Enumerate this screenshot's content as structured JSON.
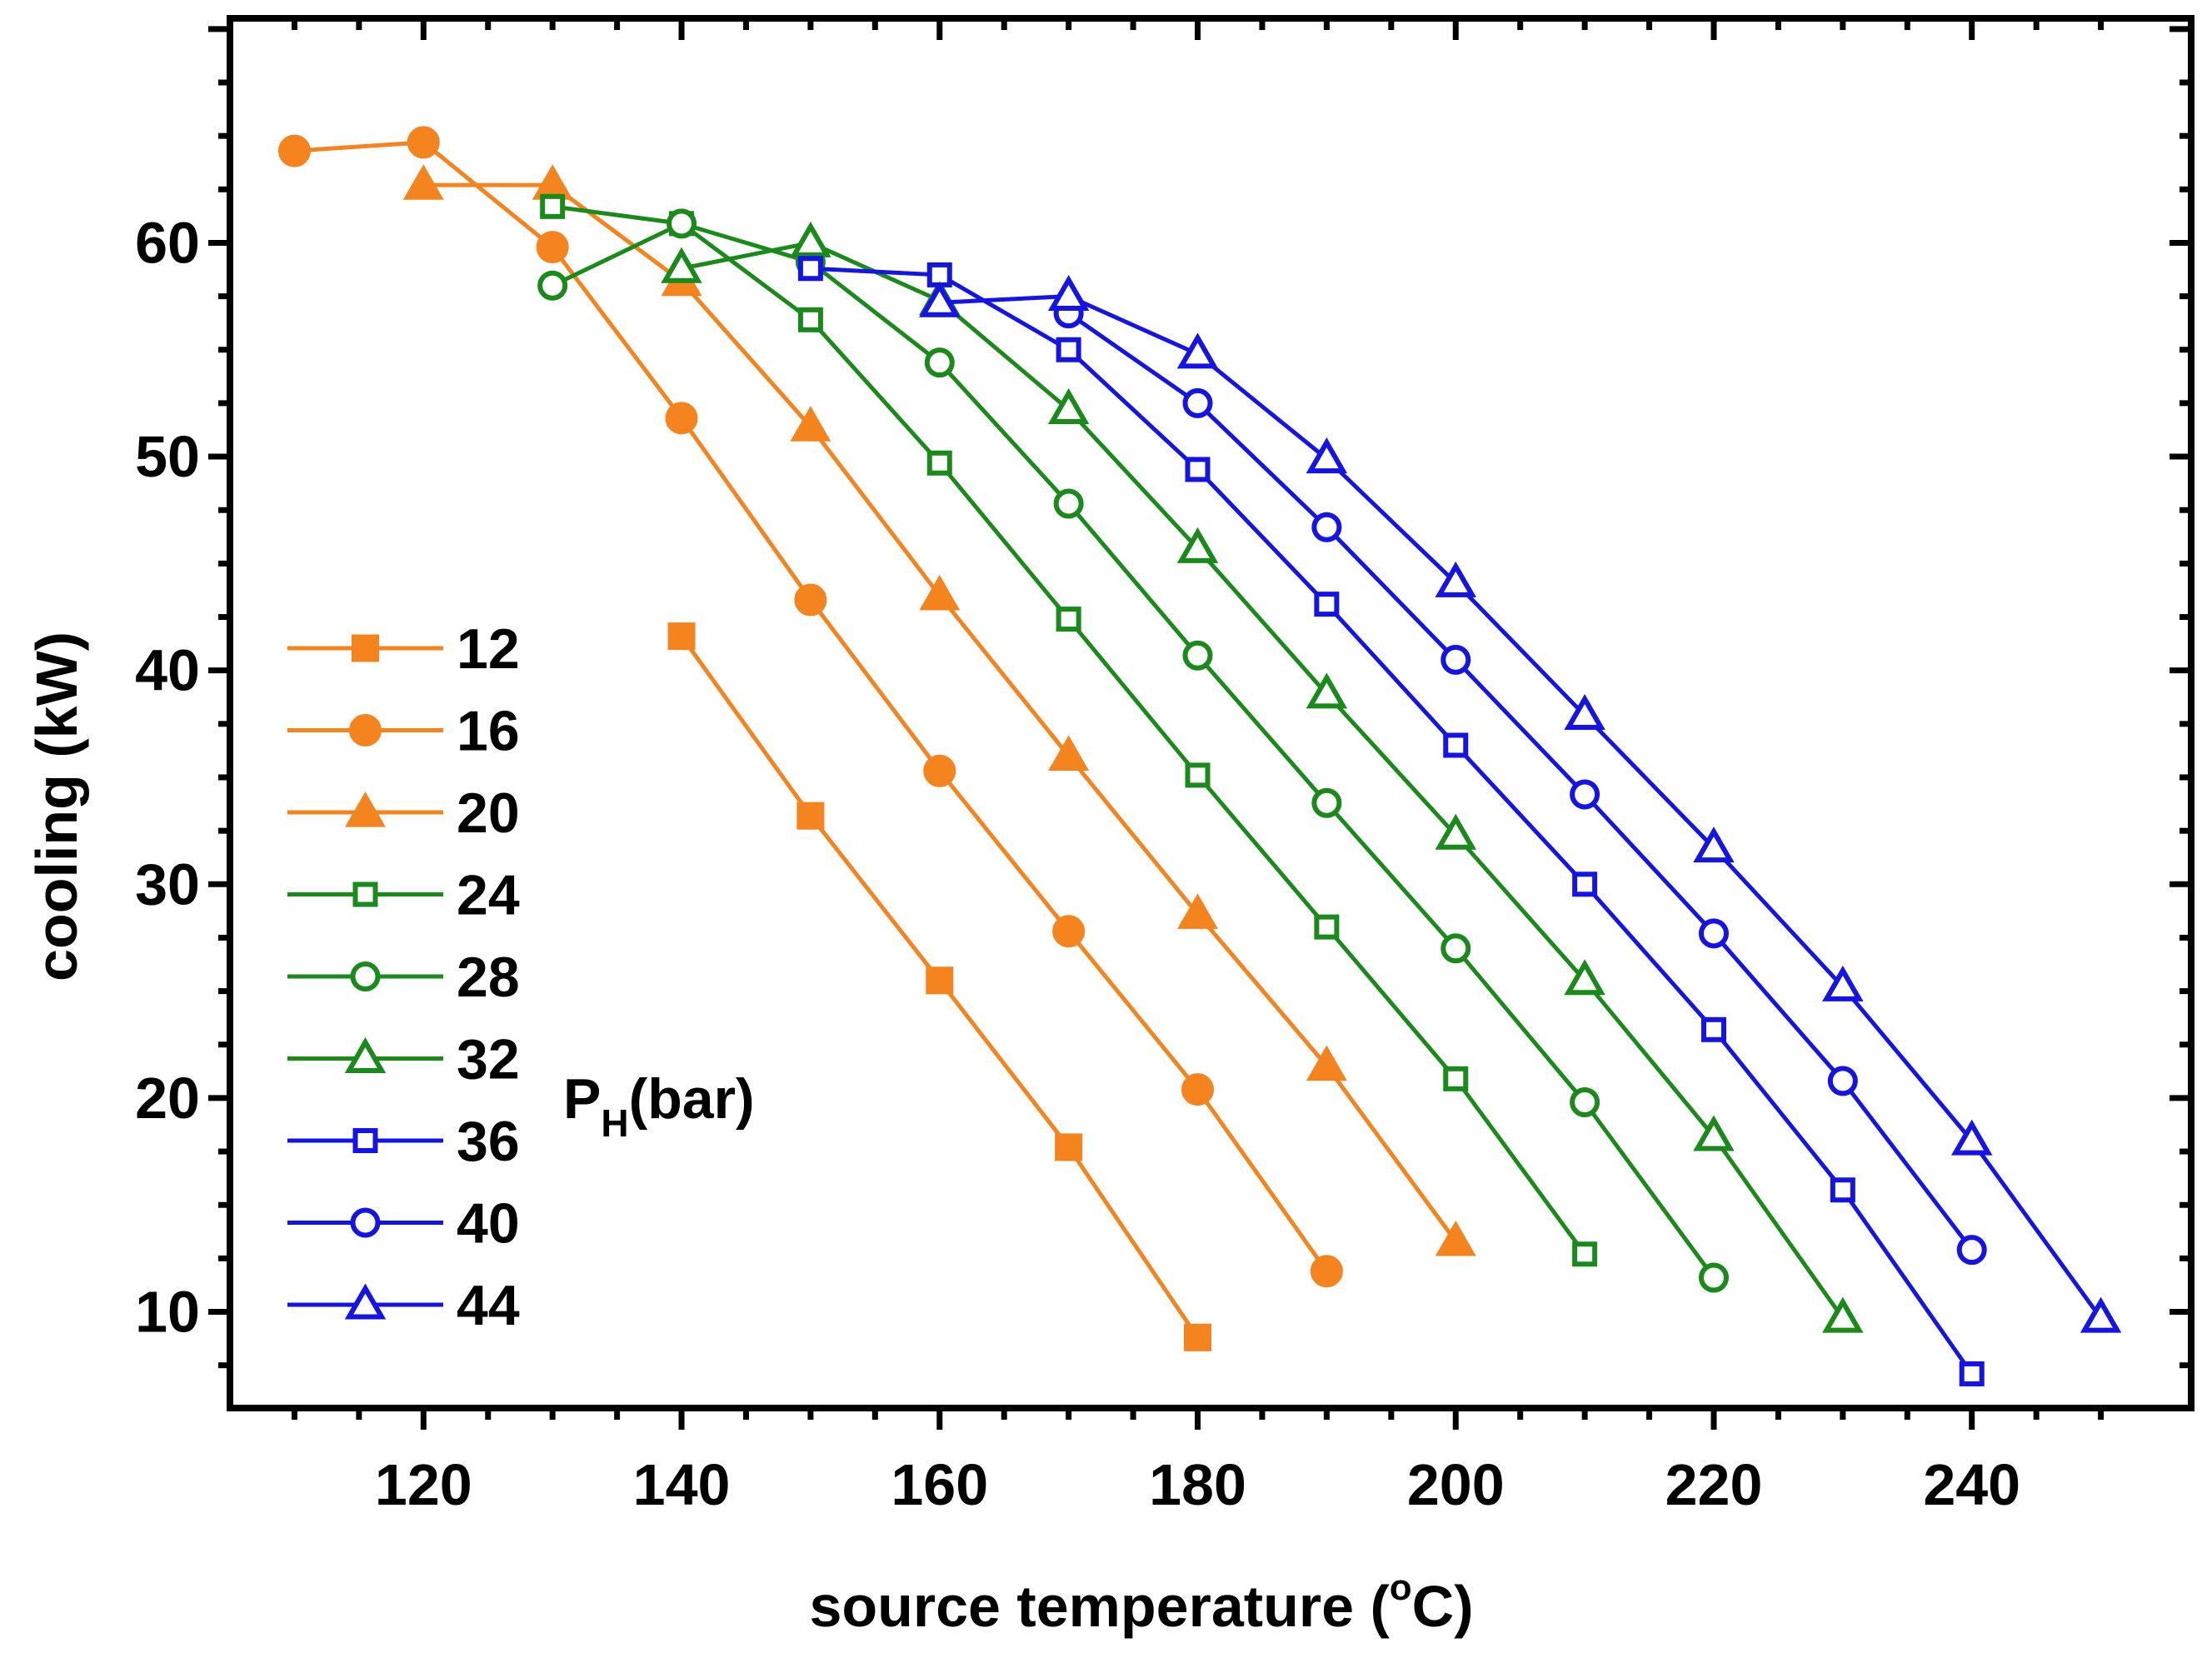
{
  "chart_data": {
    "type": "line",
    "title": "",
    "xlabel": {
      "main": "source temperature (",
      "sup": "o",
      "tail": "C)"
    },
    "ylabel": "cooling (kW)",
    "xlim": [
      105,
      257
    ],
    "ylim": [
      5.5,
      70.5
    ],
    "x_ticks": [
      120,
      140,
      160,
      180,
      200,
      220,
      240
    ],
    "y_ticks": [
      10,
      20,
      30,
      40,
      50,
      60
    ],
    "legend_title": {
      "main": "P",
      "sub": "H",
      "tail": "(bar)"
    },
    "legend_position": "left-middle",
    "colors": {
      "orange": "#f5841f",
      "green": "#1a8a1a",
      "blue": "#1414e6"
    },
    "series": [
      {
        "name": "12",
        "color": "#f5841f",
        "marker": "square",
        "filled": true,
        "x": [
          140,
          150,
          160,
          170,
          180
        ],
        "y": [
          41.6,
          33.2,
          25.5,
          17.7,
          8.8
        ]
      },
      {
        "name": "16",
        "color": "#f5841f",
        "marker": "circle",
        "filled": true,
        "x": [
          110,
          120,
          130,
          140,
          150,
          160,
          170,
          180,
          190
        ],
        "y": [
          64.3,
          64.7,
          59.8,
          51.8,
          43.3,
          35.3,
          27.8,
          20.4,
          11.9
        ]
      },
      {
        "name": "20",
        "color": "#f5841f",
        "marker": "triangle",
        "filled": true,
        "x": [
          120,
          130,
          140,
          150,
          160,
          170,
          180,
          190,
          200
        ],
        "y": [
          62.7,
          62.7,
          58.2,
          51.4,
          43.5,
          36.0,
          28.6,
          21.5,
          13.3
        ]
      },
      {
        "name": "24",
        "color": "#1a8a1a",
        "marker": "square",
        "filled": false,
        "x": [
          130,
          140,
          150,
          160,
          170,
          180,
          190,
          200,
          210
        ],
        "y": [
          61.7,
          60.9,
          56.4,
          49.7,
          42.4,
          35.1,
          28.0,
          20.9,
          12.7
        ]
      },
      {
        "name": "28",
        "color": "#1a8a1a",
        "marker": "circle",
        "filled": false,
        "x": [
          130,
          140,
          150,
          160,
          170,
          180,
          190,
          200,
          210,
          220
        ],
        "y": [
          58.0,
          60.9,
          59.1,
          54.4,
          47.8,
          40.7,
          33.8,
          27.0,
          19.8,
          11.6
        ]
      },
      {
        "name": "32",
        "color": "#1a8a1a",
        "marker": "triangle",
        "filled": false,
        "x": [
          140,
          150,
          160,
          170,
          180,
          190,
          200,
          210,
          220,
          230
        ],
        "y": [
          58.8,
          60.0,
          57.3,
          52.2,
          45.7,
          38.9,
          32.3,
          25.5,
          18.2,
          9.7
        ]
      },
      {
        "name": "36",
        "color": "#1414e6",
        "marker": "square",
        "filled": false,
        "x": [
          150,
          160,
          170,
          180,
          190,
          200,
          210,
          220,
          230,
          240
        ],
        "y": [
          58.8,
          58.5,
          55.0,
          49.4,
          43.1,
          36.5,
          30.0,
          23.2,
          15.7,
          7.1
        ]
      },
      {
        "name": "40",
        "color": "#1414e6",
        "marker": "circle",
        "filled": false,
        "x": [
          170,
          180,
          190,
          200,
          210,
          220,
          230,
          240
        ],
        "y": [
          56.7,
          52.5,
          46.7,
          40.5,
          34.2,
          27.7,
          20.8,
          12.9
        ]
      },
      {
        "name": "44",
        "color": "#1414e6",
        "marker": "triangle",
        "filled": false,
        "x": [
          160,
          170,
          180,
          190,
          200,
          210,
          220,
          230,
          240,
          250
        ],
        "y": [
          57.2,
          57.5,
          54.8,
          49.9,
          44.1,
          37.9,
          31.7,
          25.2,
          18.0,
          9.7
        ]
      }
    ]
  }
}
